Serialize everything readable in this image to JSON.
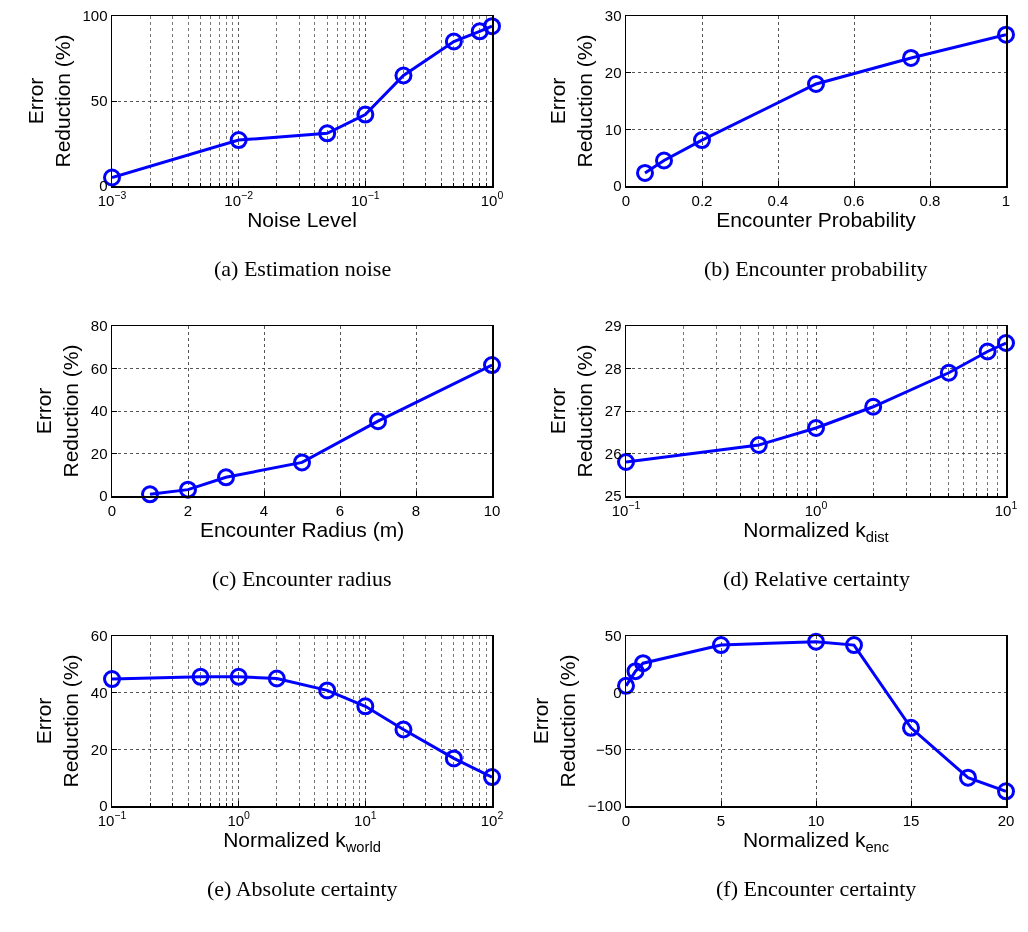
{
  "chart_data": [
    {
      "type": "line",
      "title": "(a) Estimation noise",
      "xlabel": "Noise Level",
      "ylabel": "Error\nReduction (%)",
      "log": "x",
      "grid": true,
      "marker": "circle",
      "line_style": "solid",
      "x": [
        0.001,
        0.01,
        0.05,
        0.1,
        0.2,
        0.5,
        0.8,
        1
      ],
      "series": [
        {
          "color": "#0000ff",
          "values": [
            5,
            27,
            31,
            42,
            65,
            85,
            91,
            94
          ]
        }
      ],
      "xlim": [
        0.001,
        1
      ],
      "xticks": [
        {
          "value": 0.001,
          "label": "10$^{−3}$"
        },
        {
          "value": 0.01,
          "label": "10$^{−2}$"
        },
        {
          "value": 0.1,
          "label": "10$^{−1}$"
        },
        {
          "value": 1,
          "label": "10$^{0}$"
        }
      ],
      "ylim": [
        0,
        100
      ],
      "yticks": [
        0,
        50,
        100
      ]
    },
    {
      "type": "line",
      "title": "(b) Encounter probability",
      "xlabel": "Encounter Probability",
      "ylabel": "Error\nReduction (%)",
      "grid": true,
      "marker": "circle",
      "line_style": "solid",
      "x": [
        0.05,
        0.1,
        0.2,
        0.5,
        0.75,
        1
      ],
      "series": [
        {
          "color": "#0000ff",
          "values": [
            2.3,
            4.5,
            8.1,
            18,
            22.6,
            26.7
          ]
        }
      ],
      "xlim": [
        0,
        1
      ],
      "xticks": [
        0,
        0.2,
        0.4,
        0.6,
        0.8,
        1
      ],
      "ylim": [
        0,
        30
      ],
      "yticks": [
        0,
        10,
        20,
        30
      ]
    },
    {
      "type": "line",
      "title": "(c) Encounter radius",
      "xlabel": "Encounter Radius (m)",
      "ylabel": "Error\nReduction (%)",
      "grid": true,
      "marker": "circle",
      "line_style": "solid",
      "x": [
        1,
        2,
        3,
        5,
        7,
        10
      ],
      "series": [
        {
          "color": "#0000ff",
          "values": [
            0.8,
            3,
            8.8,
            15.8,
            35.2,
            61.6
          ]
        }
      ],
      "xlim": [
        0,
        10
      ],
      "xticks": [
        0,
        2,
        4,
        6,
        8,
        10
      ],
      "ylim": [
        0,
        80
      ],
      "yticks": [
        0,
        20,
        40,
        60,
        80
      ]
    },
    {
      "type": "line",
      "title": "(d) Relative certainty",
      "xlabel": "Normalized k$_{dist}$",
      "ylabel": "Error\nReduction (%)",
      "log": "x",
      "grid": true,
      "marker": "circle",
      "line_style": "solid",
      "x": [
        0.1,
        0.5,
        1,
        2,
        5,
        8,
        10
      ],
      "series": [
        {
          "color": "#0000ff",
          "values": [
            25.8,
            26.2,
            26.6,
            27.1,
            27.9,
            28.4,
            28.6
          ]
        }
      ],
      "xlim": [
        0.1,
        10
      ],
      "xticks": [
        {
          "value": 0.1,
          "label": "10$^{−1}$"
        },
        {
          "value": 1,
          "label": "10$^{0}$"
        },
        {
          "value": 10,
          "label": "10$^{1}$"
        }
      ],
      "ylim": [
        25,
        29
      ],
      "yticks": [
        25,
        26,
        27,
        28,
        29
      ]
    },
    {
      "type": "line",
      "title": "(e) Absolute certainty",
      "xlabel": "Normalized k$_{world}$",
      "ylabel": "Error\nReduction (%)",
      "log": "x",
      "grid": true,
      "marker": "circle",
      "line_style": "solid",
      "x": [
        0.1,
        0.5,
        1,
        2,
        5,
        10,
        20,
        50,
        100
      ],
      "series": [
        {
          "color": "#0000ff",
          "values": [
            44.8,
            45.6,
            45.6,
            45,
            40.8,
            35.2,
            27,
            16.8,
            10.2
          ]
        }
      ],
      "xlim": [
        0.1,
        100
      ],
      "xticks": [
        {
          "value": 0.1,
          "label": "10$^{−1}$"
        },
        {
          "value": 1,
          "label": "10$^{0}$"
        },
        {
          "value": 10,
          "label": "10$^{1}$"
        },
        {
          "value": 100,
          "label": "10$^{2}$"
        }
      ],
      "ylim": [
        0,
        60
      ],
      "yticks": [
        0,
        20,
        40,
        60
      ]
    },
    {
      "type": "line",
      "title": "(f) Encounter certainty",
      "xlabel": "Normalized k$_{enc}$",
      "ylabel": "Error\nReduction (%)",
      "grid": true,
      "marker": "circle",
      "line_style": "solid",
      "x": [
        0,
        0.5,
        0.9,
        5,
        10,
        12,
        15,
        18,
        20
      ],
      "series": [
        {
          "color": "#0000ff",
          "values": [
            6,
            19,
            26,
            42,
            45,
            42,
            -31,
            -75,
            -87
          ]
        }
      ],
      "xlim": [
        0,
        20
      ],
      "xticks": [
        0,
        5,
        10,
        15,
        20
      ],
      "ylim": [
        -100,
        50
      ],
      "yticks": [
        {
          "value": -100,
          "label": "−100"
        },
        {
          "value": -50,
          "label": "−50"
        },
        0,
        50
      ]
    }
  ]
}
